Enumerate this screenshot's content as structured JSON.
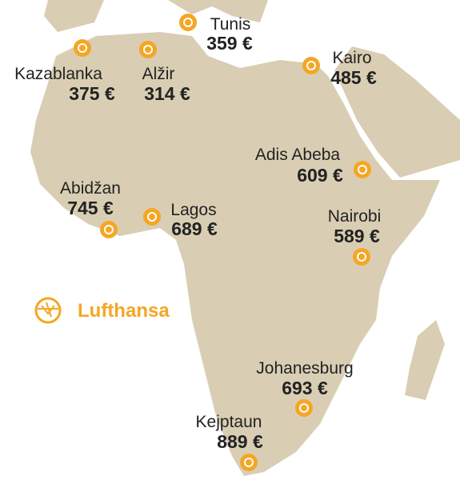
{
  "cities": [
    {
      "name": "Tunis",
      "price": "359 €"
    },
    {
      "name": "Kazablanka",
      "price": "375 €"
    },
    {
      "name": "Alžir",
      "price": "314 €"
    },
    {
      "name": "Kairo",
      "price": "485 €"
    },
    {
      "name": "Adis Abeba",
      "price": "609 €"
    },
    {
      "name": "Abidžan",
      "price": "745 €"
    },
    {
      "name": "Lagos",
      "price": "689 €"
    },
    {
      "name": "Nairobi",
      "price": "589 €"
    },
    {
      "name": "Johanesburg",
      "price": "693 €"
    },
    {
      "name": "Kejptaun",
      "price": "889 €"
    }
  ],
  "brand": "Lufthansa"
}
